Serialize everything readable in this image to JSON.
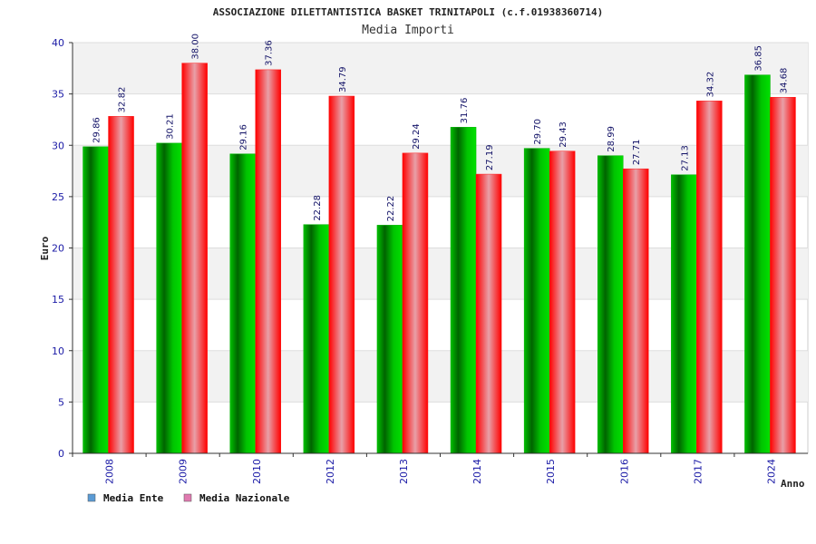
{
  "chart_data": {
    "type": "bar",
    "title": "ASSOCIAZIONE DILETTANTISTICA BASKET TRINITAPOLI (c.f.01938360714)",
    "subtitle": "Media Importi",
    "xlabel": "Anno",
    "ylabel": "Euro",
    "ylim": [
      0,
      40
    ],
    "yticks": [
      0,
      5,
      10,
      15,
      20,
      25,
      30,
      35,
      40
    ],
    "grid": true,
    "legend_position": "bottom-left",
    "categories": [
      "2008",
      "2009",
      "2010",
      "2012",
      "2013",
      "2014",
      "2015",
      "2016",
      "2017",
      "2024"
    ],
    "series": [
      {
        "name": "Media Ente",
        "color": "#00b000",
        "legend_color": "#5b9bd5",
        "values": [
          29.86,
          30.21,
          29.16,
          22.28,
          22.22,
          31.76,
          29.7,
          28.99,
          27.13,
          36.85
        ],
        "labels": [
          "29.86",
          "30.21",
          "29.16",
          "22.28",
          "22.22",
          "31.76",
          "29.70",
          "28.99",
          "27.13",
          "36.85"
        ]
      },
      {
        "name": "Media Nazionale",
        "color": "#ff1a1a",
        "legend_color": "#e07ab0",
        "values": [
          32.82,
          38.0,
          37.36,
          34.79,
          29.24,
          27.19,
          29.43,
          27.71,
          34.32,
          34.68
        ],
        "labels": [
          "32.82",
          "38.00",
          "37.36",
          "34.79",
          "29.24",
          "27.19",
          "29.43",
          "27.71",
          "34.32",
          "34.68"
        ]
      }
    ]
  }
}
